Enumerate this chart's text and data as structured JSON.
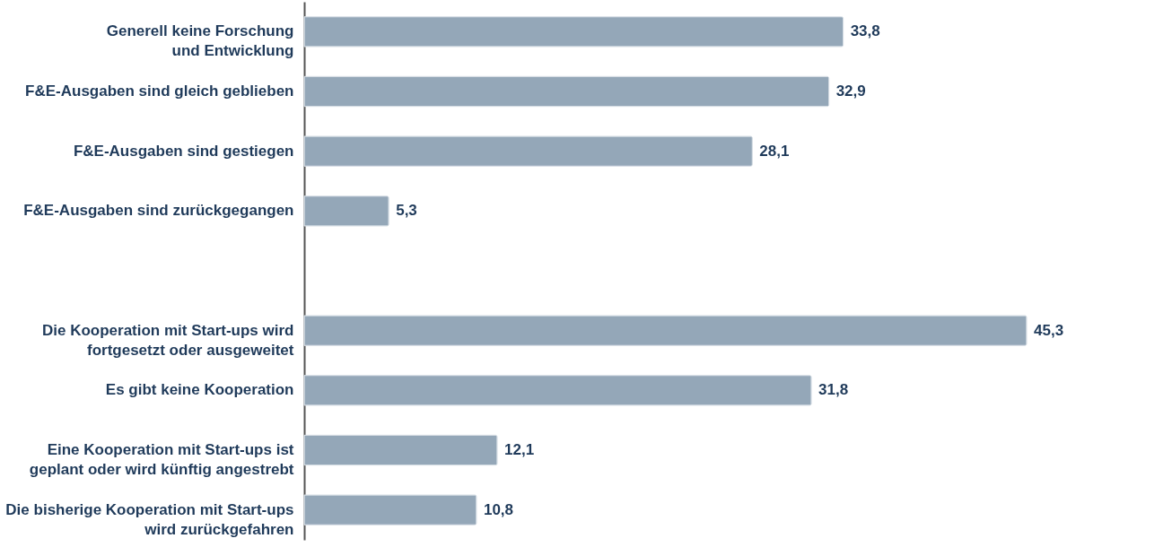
{
  "chart_data": {
    "type": "bar",
    "orientation": "horizontal",
    "categories": [
      "Generell keine Forschung\nund Entwicklung",
      "F&E-Ausgaben sind gleich geblieben",
      "F&E-Ausgaben sind gestiegen",
      "F&E-Ausgaben sind zurückgegangen",
      null,
      "Die Kooperation mit Start-ups wird\nfortgesetzt oder ausgeweitet",
      "Es gibt keine Kooperation",
      "Eine Kooperation mit Start-ups ist\ngeplant oder wird künftig angestrebt",
      "Die bisherige Kooperation mit Start-ups\nwird zurückgefahren"
    ],
    "values": [
      33.8,
      32.9,
      28.1,
      5.3,
      null,
      45.3,
      31.8,
      12.1,
      10.8
    ],
    "value_labels": [
      "33,8",
      "32,9",
      "28,1",
      "5,3",
      null,
      "45,3",
      "31,8",
      "12,1",
      "10,8"
    ],
    "color": "#94a7b8"
  }
}
